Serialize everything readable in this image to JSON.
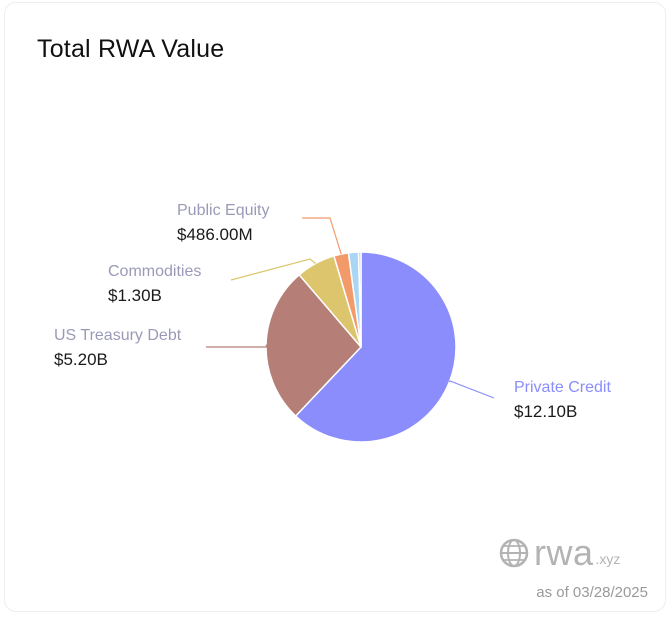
{
  "title": "Total RWA Value",
  "chart_data": {
    "type": "pie",
    "title": "Total RWA Value",
    "unit": "USD",
    "slices": [
      {
        "name": "Private Credit",
        "value": 12.1,
        "value_label": "$12.10B",
        "color": "#8a8dfb",
        "label_color": "#8a8dfb"
      },
      {
        "name": "US Treasury Debt",
        "value": 5.2,
        "value_label": "$5.20B",
        "color": "#b57f78",
        "label_color": "#9a9ab8"
      },
      {
        "name": "Commodities",
        "value": 1.3,
        "value_label": "$1.30B",
        "color": "#dcc56c",
        "label_color": "#9a9ab8"
      },
      {
        "name": "Public Equity",
        "value": 0.486,
        "value_label": "$486.00M",
        "color": "#f39a6b",
        "label_color": "#9a9ab8"
      },
      {
        "name": "",
        "value": 0.33,
        "value_label": "",
        "color": "#a9d6f2",
        "label_color": ""
      },
      {
        "name": "",
        "value": 0.08,
        "value_label": "",
        "color": "#b9c7e8",
        "label_color": ""
      }
    ]
  },
  "branding": {
    "logo_word": "rwa",
    "logo_tld": ".xyz",
    "as_of": "as of 03/28/2025"
  }
}
